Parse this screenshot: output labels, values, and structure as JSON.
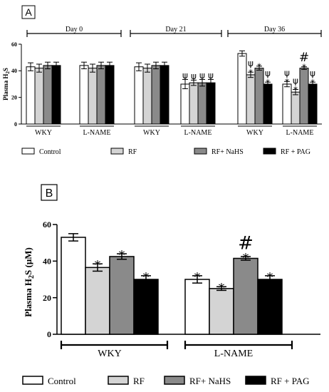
{
  "chart_data": [
    {
      "panel_label": "A",
      "type": "bar",
      "ylabel": "Plasma H",
      "ylabel_sub": "2",
      "ylabel_tail": "S",
      "ylim": [
        0,
        60
      ],
      "yticks": [
        "0",
        "20",
        "40",
        "60"
      ],
      "periods": [
        "Day 0",
        "Day 21",
        "Day 36"
      ],
      "groups": [
        {
          "label": "WKY",
          "period": 0,
          "values": [
            43,
            42,
            44,
            44
          ],
          "errors": [
            3,
            3,
            2.5,
            2.5
          ],
          "annotations": [
            [],
            [],
            [],
            []
          ]
        },
        {
          "label": "L-NAME",
          "period": 0,
          "values": [
            44,
            42,
            44,
            44
          ],
          "errors": [
            2.5,
            3,
            2.5,
            2.5
          ],
          "annotations": [
            [],
            [],
            [],
            []
          ]
        },
        {
          "label": "WKY",
          "period": 1,
          "values": [
            43,
            42,
            44,
            44
          ],
          "errors": [
            3,
            3,
            2.5,
            2.5
          ],
          "annotations": [
            [],
            [],
            [],
            []
          ]
        },
        {
          "label": "L-NAME",
          "period": 1,
          "values": [
            30,
            31,
            31,
            31
          ],
          "errors": [
            3.5,
            2,
            2.5,
            2.5
          ],
          "annotations": [
            [
              "ψ"
            ],
            [
              "ψ"
            ],
            [
              "ψ"
            ],
            [
              "ψ"
            ]
          ]
        },
        {
          "label": "WKY",
          "period": 2,
          "values": [
            53,
            37,
            42,
            30
          ],
          "errors": [
            2,
            2,
            1.5,
            1.5
          ],
          "annotations": [
            [],
            [
              "*",
              "ψ"
            ],
            [
              "*"
            ],
            [
              "*",
              "ψ"
            ]
          ]
        },
        {
          "label": "L-NAME",
          "period": 2,
          "values": [
            30,
            24,
            42,
            30
          ],
          "errors": [
            2,
            2,
            1,
            1.5
          ],
          "annotations": [
            [
              "*",
              "ψ"
            ],
            [
              "*",
              "ψ"
            ],
            [
              "*",
              "#"
            ],
            [
              "*",
              "ψ"
            ]
          ]
        }
      ],
      "legend": [
        "Control",
        "RF",
        "RF+ NaHS",
        "RF + PAG"
      ],
      "colors": [
        "#ffffff",
        "#d4d4d4",
        "#8a8a8a",
        "#000000"
      ]
    },
    {
      "panel_label": "B",
      "type": "bar",
      "ylabel": "Plasma H",
      "ylabel_sub": "2",
      "ylabel_tail": "S (μM)",
      "ylim": [
        0,
        60
      ],
      "yticks": [
        "0",
        "20",
        "40",
        "60"
      ],
      "groups": [
        {
          "label": "WKY",
          "values": [
            53,
            36.5,
            42.5,
            30
          ],
          "errors": [
            2,
            2,
            1.5,
            2
          ],
          "annotations": [
            [],
            [
              "*"
            ],
            [
              "*"
            ],
            [
              "*"
            ]
          ]
        },
        {
          "label": "L-NAME",
          "values": [
            30,
            25,
            41.5,
            30
          ],
          "errors": [
            2,
            1,
            1,
            2
          ],
          "annotations": [
            [
              "*"
            ],
            [
              "*"
            ],
            [
              "*",
              "#"
            ],
            [
              "*"
            ]
          ]
        }
      ],
      "legend": [
        "Control",
        "RF",
        "RF+ NaHS",
        "RF + PAG"
      ],
      "colors": [
        "#ffffff",
        "#d4d4d4",
        "#8a8a8a",
        "#000000"
      ]
    }
  ]
}
